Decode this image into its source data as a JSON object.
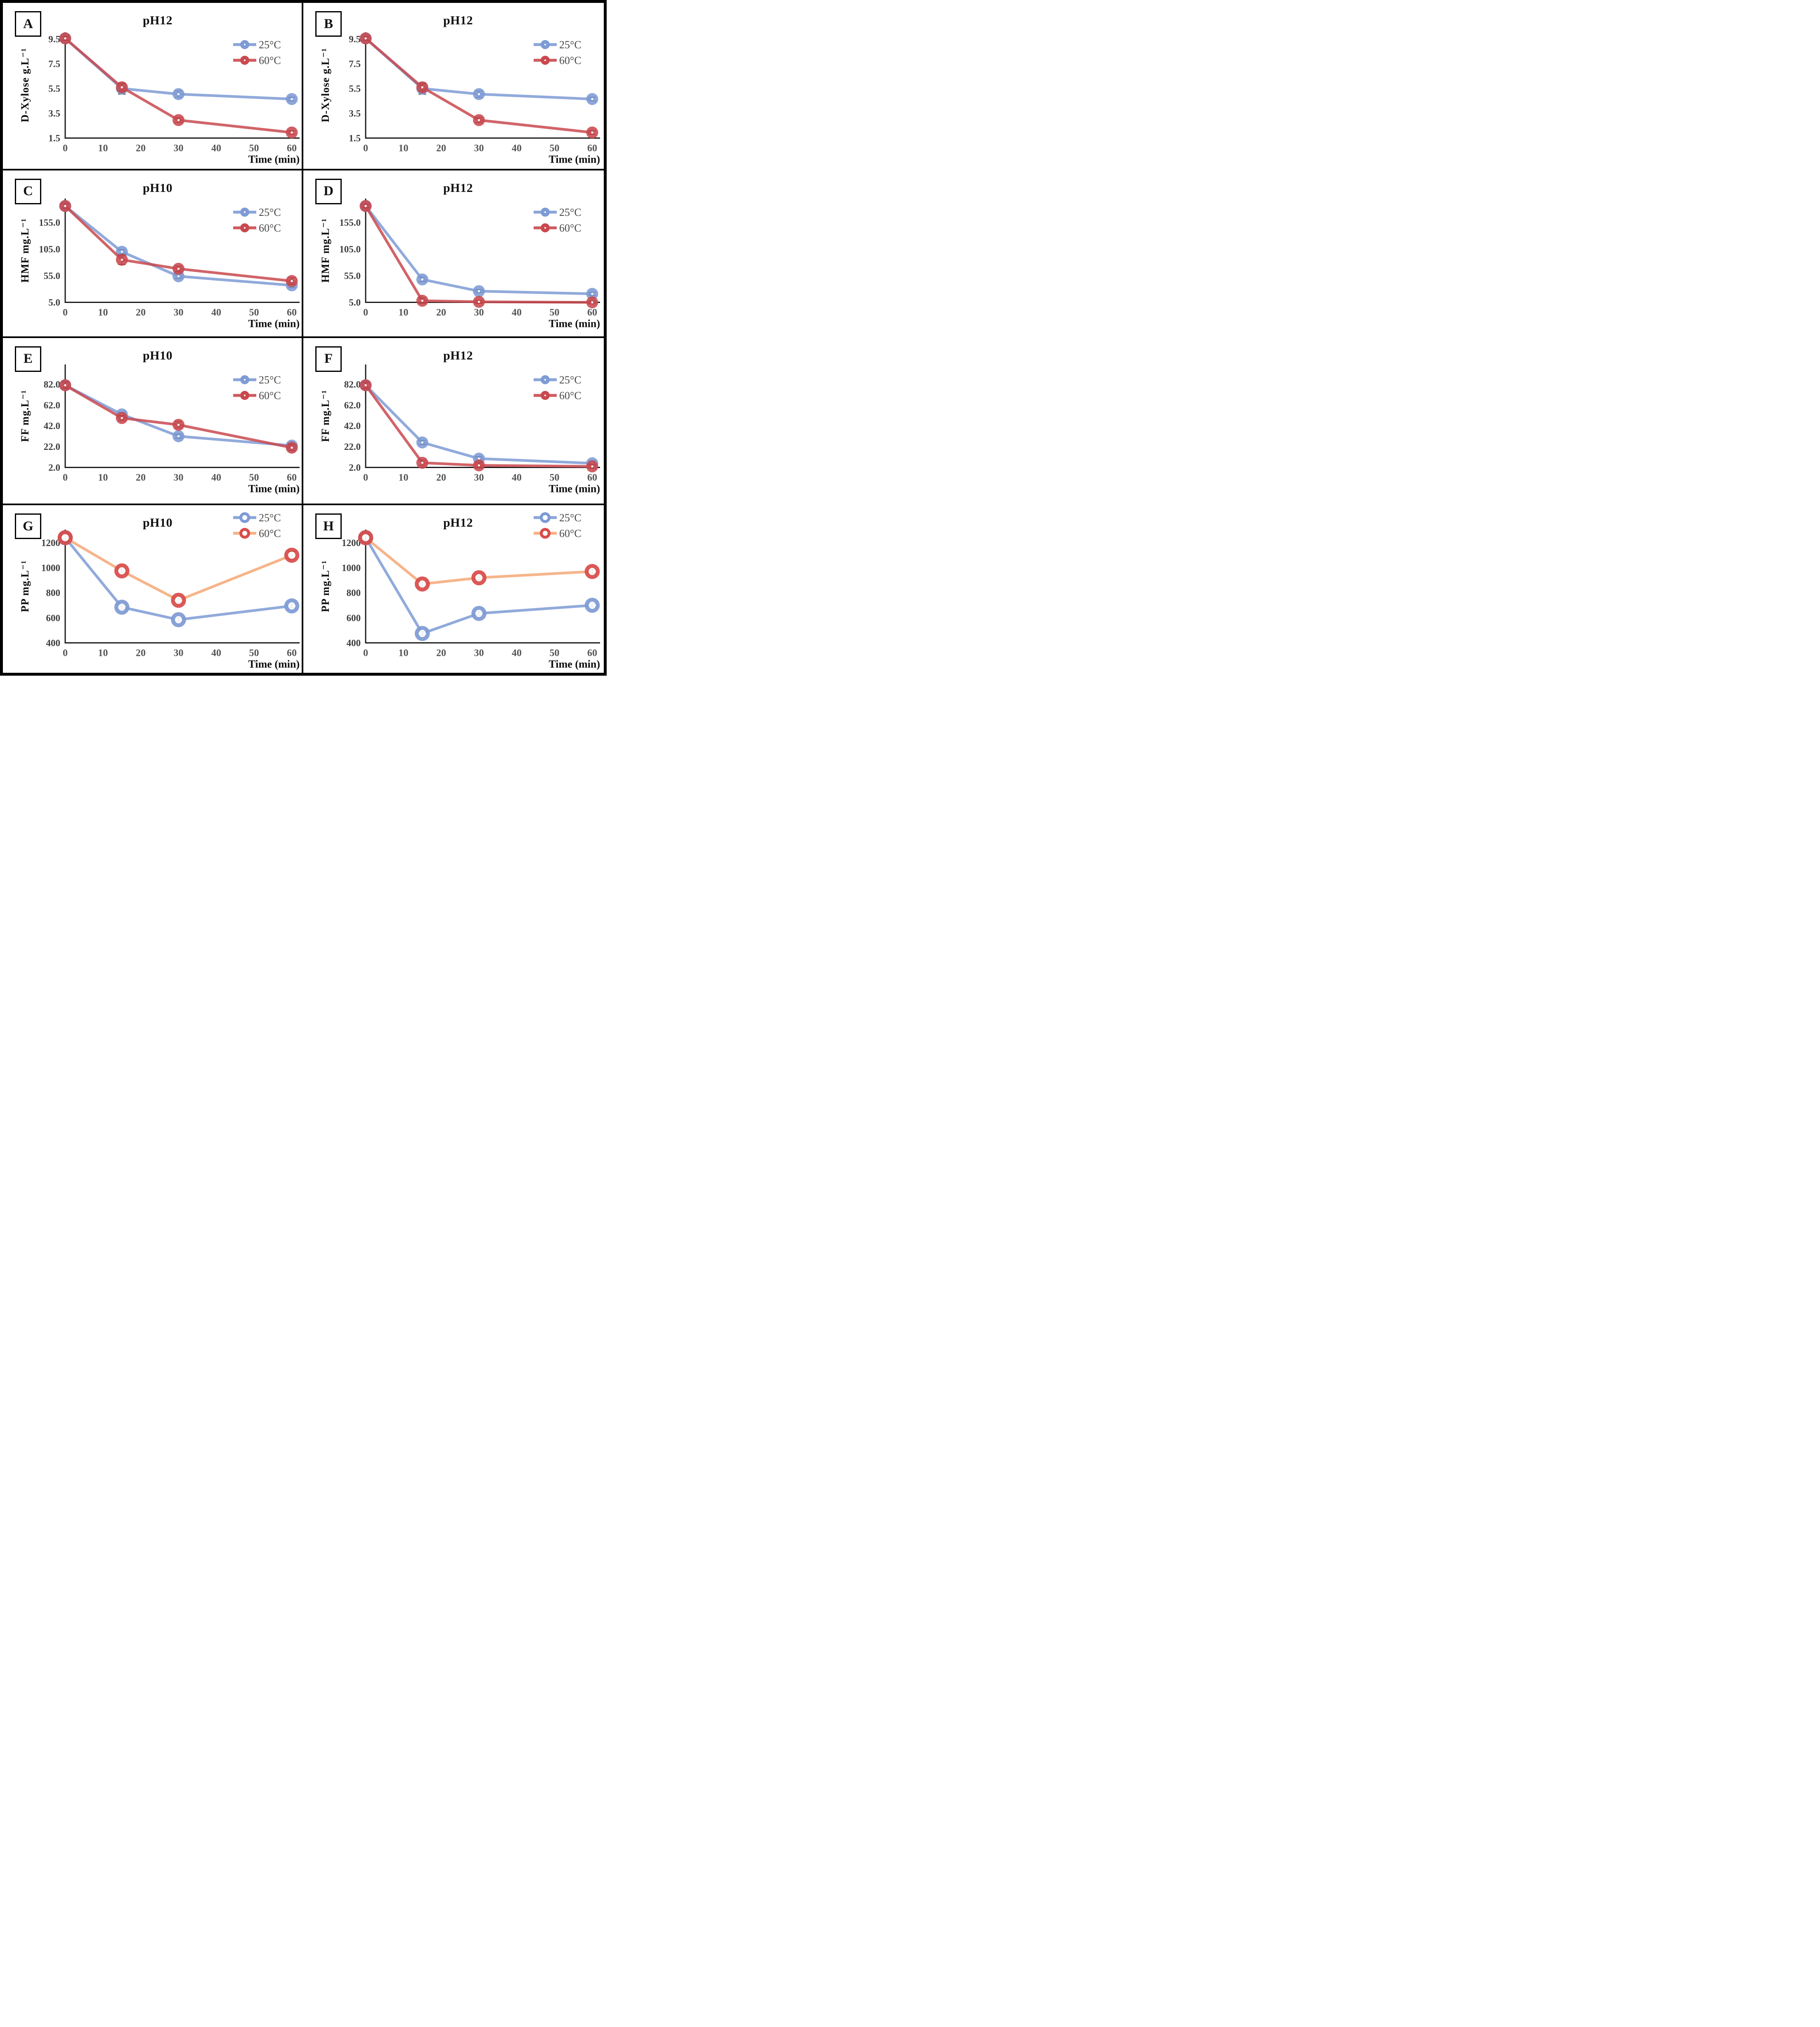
{
  "chart_data": [
    {
      "id": "A",
      "type": "line",
      "title": "pH12",
      "xlabel": "Time (min)",
      "ylabel": "D-Xylose g.L⁻¹",
      "x": [
        0,
        15,
        30,
        60
      ],
      "xticks": [
        0,
        10,
        20,
        30,
        40,
        50,
        60
      ],
      "xlim": [
        0,
        62
      ],
      "yticks": [
        1.5,
        3.5,
        5.5,
        7.5,
        9.5
      ],
      "ytick_labels": [
        "1.5",
        "3.5",
        "5.5",
        "7.5",
        "9.5"
      ],
      "ylim": [
        1.5,
        10.05
      ],
      "grid": false,
      "legend_position": "upper-right",
      "series": [
        {
          "name": "25°C",
          "color": "#7E9BD5",
          "marker": "dot",
          "values": [
            9.55,
            5.5,
            5.05,
            4.65
          ],
          "errors": [
            0.15,
            0.45,
            0.25,
            0.15
          ]
        },
        {
          "name": "60°C",
          "color": "#C9494F",
          "marker": "dot",
          "values": [
            9.55,
            5.6,
            2.95,
            1.95
          ],
          "errors": [
            0.15,
            0.3,
            0.2,
            0.15
          ]
        }
      ]
    },
    {
      "id": "B",
      "type": "line",
      "title": "pH12",
      "xlabel": "Time (min)",
      "ylabel": "D-Xylose g.L⁻¹",
      "x": [
        0,
        15,
        30,
        60
      ],
      "xticks": [
        0,
        10,
        20,
        30,
        40,
        50,
        60
      ],
      "xlim": [
        0,
        62
      ],
      "yticks": [
        1.5,
        3.5,
        5.5,
        7.5,
        9.5
      ],
      "ytick_labels": [
        "1.5",
        "3.5",
        "5.5",
        "7.5",
        "9.5"
      ],
      "ylim": [
        1.5,
        10.05
      ],
      "grid": false,
      "legend_position": "upper-right",
      "series": [
        {
          "name": "25°C",
          "color": "#7E9BD5",
          "marker": "dot",
          "values": [
            9.55,
            5.5,
            5.05,
            4.65
          ],
          "errors": [
            0.15,
            0.45,
            0.25,
            0.15
          ]
        },
        {
          "name": "60°C",
          "color": "#C9494F",
          "marker": "dot",
          "values": [
            9.55,
            5.6,
            2.95,
            1.95
          ],
          "errors": [
            0.15,
            0.3,
            0.2,
            0.15
          ]
        }
      ]
    },
    {
      "id": "C",
      "type": "line",
      "title": "pH10",
      "xlabel": "Time (min)",
      "ylabel": "HMF mg.L⁻¹",
      "x": [
        0,
        15,
        30,
        60
      ],
      "xticks": [
        0,
        10,
        20,
        30,
        40,
        50,
        60
      ],
      "xlim": [
        0,
        62
      ],
      "yticks": [
        5.0,
        55.0,
        105.0,
        155.0
      ],
      "ytick_labels": [
        "5.0",
        "55.0",
        "105.0",
        "155.0"
      ],
      "ylim": [
        5,
        200
      ],
      "grid": false,
      "legend_position": "upper-right",
      "series": [
        {
          "name": "25°C",
          "color": "#7E9BD5",
          "marker": "dot",
          "values": [
            186,
            100,
            54,
            37
          ],
          "errors": [
            4,
            4,
            4,
            4
          ]
        },
        {
          "name": "60°C",
          "color": "#C9494F",
          "marker": "dot",
          "values": [
            186,
            85,
            68,
            45
          ],
          "errors": [
            4,
            9,
            5,
            6
          ]
        }
      ]
    },
    {
      "id": "D",
      "type": "line",
      "title": "pH12",
      "xlabel": "Time (min)",
      "ylabel": "HMF mg.L⁻¹",
      "x": [
        0,
        15,
        30,
        60
      ],
      "xticks": [
        0,
        10,
        20,
        30,
        40,
        50,
        60
      ],
      "xlim": [
        0,
        62
      ],
      "yticks": [
        5.0,
        55.0,
        105.0,
        155.0
      ],
      "ytick_labels": [
        "5.0",
        "55.0",
        "105.0",
        "155.0"
      ],
      "ylim": [
        5,
        200
      ],
      "grid": false,
      "legend_position": "upper-right",
      "series": [
        {
          "name": "25°C",
          "color": "#7E9BD5",
          "marker": "dot",
          "values": [
            186,
            48,
            26,
            21
          ],
          "errors": [
            4,
            4,
            3,
            3
          ]
        },
        {
          "name": "60°C",
          "color": "#C9494F",
          "marker": "dot",
          "values": [
            186,
            8,
            6,
            5
          ],
          "errors": [
            3,
            5,
            3,
            3
          ]
        }
      ]
    },
    {
      "id": "E",
      "type": "line",
      "title": "pH10",
      "xlabel": "Time (min)",
      "ylabel": "FF mg.L⁻¹",
      "x": [
        0,
        15,
        30,
        60
      ],
      "xticks": [
        0,
        10,
        20,
        30,
        40,
        50,
        60
      ],
      "xlim": [
        0,
        62
      ],
      "yticks": [
        2.0,
        22.0,
        42.0,
        62.0,
        82.0
      ],
      "ytick_labels": [
        "2.0",
        "22.0",
        "42.0",
        "62.0",
        "82.0"
      ],
      "ylim": [
        2,
        101
      ],
      "grid": false,
      "legend_position": "upper-right",
      "series": [
        {
          "name": "25°C",
          "color": "#7E9BD5",
          "marker": "dot",
          "values": [
            81,
            53,
            32,
            23
          ],
          "errors": [
            3,
            2,
            2,
            2
          ]
        },
        {
          "name": "60°C",
          "color": "#C9494F",
          "marker": "dot",
          "values": [
            81,
            49.5,
            43,
            21
          ],
          "errors": [
            3,
            2.5,
            3,
            3
          ]
        }
      ]
    },
    {
      "id": "F",
      "type": "line",
      "title": "pH12",
      "xlabel": "Time (min)",
      "ylabel": "FF mg.L⁻¹",
      "x": [
        0,
        15,
        30,
        60
      ],
      "xticks": [
        0,
        10,
        20,
        30,
        40,
        50,
        60
      ],
      "xlim": [
        0,
        62
      ],
      "yticks": [
        2.0,
        22.0,
        42.0,
        62.0,
        82.0
      ],
      "ytick_labels": [
        "2.0",
        "22.0",
        "42.0",
        "62.0",
        "82.0"
      ],
      "ylim": [
        2,
        101
      ],
      "grid": false,
      "legend_position": "upper-right",
      "series": [
        {
          "name": "25°C",
          "color": "#7E9BD5",
          "marker": "dot",
          "values": [
            81,
            26,
            10.5,
            6
          ],
          "errors": [
            3,
            2,
            2,
            2.5
          ]
        },
        {
          "name": "60°C",
          "color": "#C9494F",
          "marker": "dot",
          "values": [
            81,
            6.5,
            4,
            3
          ],
          "errors": [
            3,
            2.5,
            2.5,
            2
          ]
        }
      ]
    },
    {
      "id": "G",
      "type": "line",
      "title": "pH10",
      "xlabel": "Time (min)",
      "ylabel": "PP mg.L⁻¹",
      "x": [
        0,
        15,
        30,
        60
      ],
      "xticks": [
        0,
        10,
        20,
        30,
        40,
        50,
        60
      ],
      "xlim": [
        0,
        62
      ],
      "yticks": [
        400,
        600,
        800,
        1000,
        1200
      ],
      "ytick_labels": [
        "400",
        "600",
        "800",
        "1000",
        "1200"
      ],
      "ylim": [
        400,
        1305
      ],
      "grid": false,
      "legend_position": "top-right",
      "series": [
        {
          "name": "25°C",
          "color": "#7E9BD5",
          "marker": "donut",
          "values": [
            1240,
            685,
            585,
            695
          ],
          "errors": [
            25,
            20,
            18,
            15
          ]
        },
        {
          "name": "60°C",
          "color": "#F5A877",
          "marker_color": "#D94C49",
          "marker": "donut",
          "values": [
            1240,
            975,
            740,
            1100
          ],
          "errors": [
            25,
            18,
            18,
            30
          ]
        }
      ]
    },
    {
      "id": "H",
      "type": "line",
      "title": "pH12",
      "xlabel": "Time (min)",
      "ylabel": "PP mg.L⁻¹",
      "x": [
        0,
        15,
        30,
        60
      ],
      "xticks": [
        0,
        10,
        20,
        30,
        40,
        50,
        60
      ],
      "xlim": [
        0,
        62
      ],
      "yticks": [
        400,
        600,
        800,
        1000,
        1200
      ],
      "ytick_labels": [
        "400",
        "600",
        "800",
        "1000",
        "1200"
      ],
      "ylim": [
        400,
        1305
      ],
      "grid": false,
      "legend_position": "top-right",
      "series": [
        {
          "name": "25°C",
          "color": "#7E9BD5",
          "marker": "donut",
          "values": [
            1240,
            475,
            635,
            700
          ],
          "errors": [
            25,
            15,
            15,
            15
          ]
        },
        {
          "name": "60°C",
          "color": "#F5A877",
          "marker_color": "#D94C49",
          "marker": "donut",
          "values": [
            1240,
            870,
            920,
            970
          ],
          "errors": [
            25,
            22,
            15,
            18
          ]
        }
      ]
    }
  ]
}
